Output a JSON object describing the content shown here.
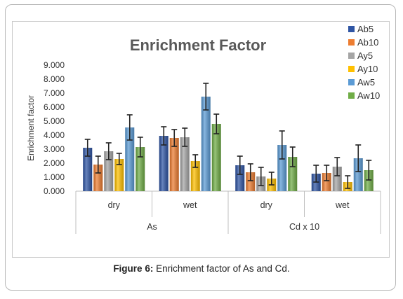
{
  "caption": {
    "label": "Figure 6:",
    "text": " Enrichment factor of As and Cd."
  },
  "chart_data": {
    "type": "bar",
    "title": "Enrichment Factor",
    "xlabel": "",
    "ylabel": "Enrichment factor",
    "ylim": [
      0,
      9
    ],
    "yticks": [
      "0.000",
      "1.000",
      "2.000",
      "3.000",
      "4.000",
      "5.000",
      "6.000",
      "7.000",
      "8.000",
      "9.000"
    ],
    "groups": [
      {
        "label": "As",
        "categories": [
          "dry",
          "wet"
        ]
      },
      {
        "label": "Cd x 10",
        "categories": [
          "dry",
          "wet"
        ]
      }
    ],
    "categories": [
      "dry",
      "wet",
      "dry",
      "wet"
    ],
    "legend_position": "top-right",
    "grid": false,
    "series": [
      {
        "name": "Ab5",
        "color": "#2f55a4",
        "values": [
          3.1,
          3.95,
          1.85,
          1.25
        ],
        "errors": [
          0.6,
          0.65,
          0.65,
          0.6
        ]
      },
      {
        "name": "Ab10",
        "color": "#ed7d31",
        "values": [
          1.9,
          3.8,
          1.35,
          1.3
        ],
        "errors": [
          0.6,
          0.6,
          0.6,
          0.55
        ]
      },
      {
        "name": "Ay5",
        "color": "#a5a5a5",
        "values": [
          2.85,
          3.85,
          1.05,
          1.75
        ],
        "errors": [
          0.6,
          0.65,
          0.65,
          0.65
        ]
      },
      {
        "name": "Ay10",
        "color": "#ffc000",
        "values": [
          2.3,
          2.15,
          0.9,
          0.65
        ],
        "errors": [
          0.4,
          0.45,
          0.45,
          0.45
        ]
      },
      {
        "name": "Aw5",
        "color": "#5b9bd5",
        "values": [
          4.55,
          6.75,
          3.3,
          2.35
        ],
        "errors": [
          0.9,
          0.95,
          1.0,
          0.95
        ]
      },
      {
        "name": "Aw10",
        "color": "#70ad47",
        "values": [
          3.15,
          4.8,
          2.45,
          1.5
        ],
        "errors": [
          0.7,
          0.7,
          0.7,
          0.7
        ]
      }
    ]
  }
}
